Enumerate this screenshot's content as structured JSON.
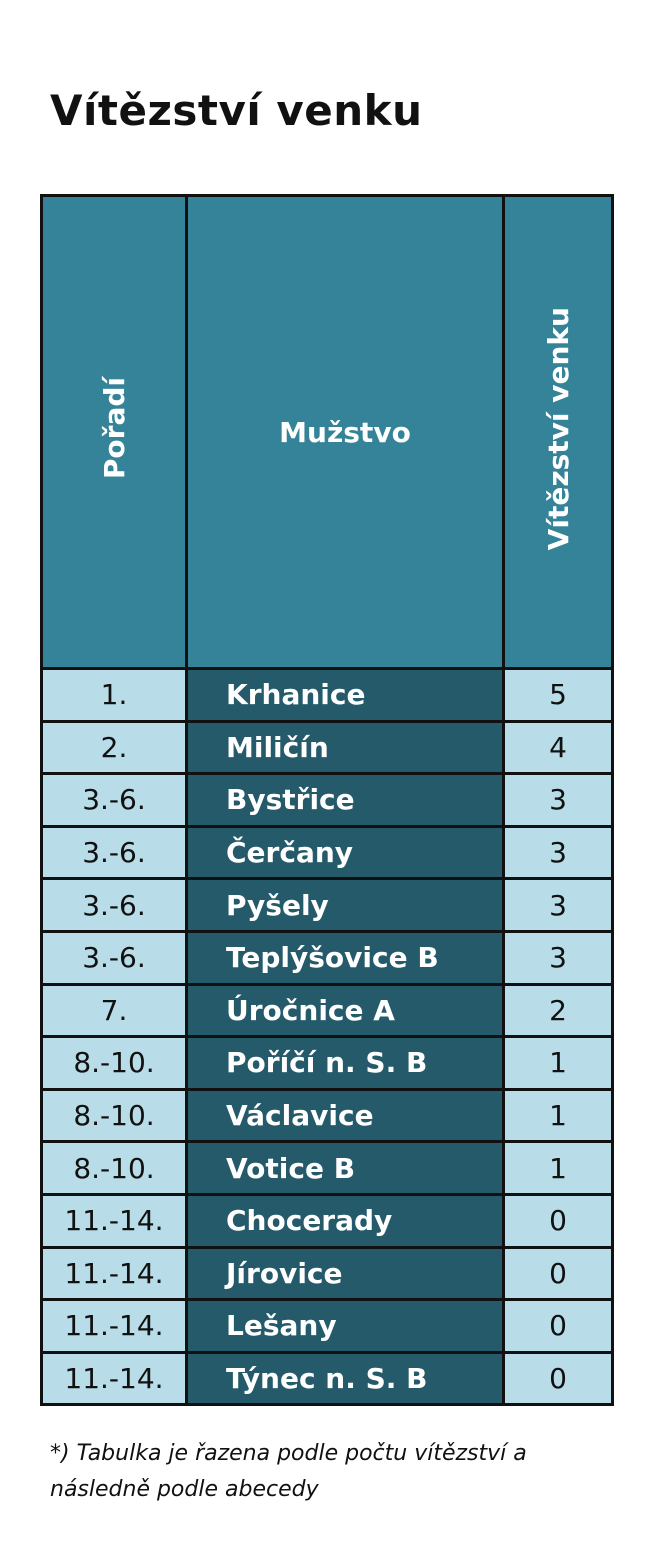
{
  "header": {
    "title": "Vítězství venku"
  },
  "table": {
    "columns": [
      "Pořadí",
      "Mužstvo",
      "Vítězství venku"
    ],
    "rows": [
      [
        "1.",
        "Krhanice",
        5
      ],
      [
        "2.",
        "Miličín",
        4
      ],
      [
        "3.-6.",
        "Bystřice",
        3
      ],
      [
        "3.-6.",
        "Čerčany",
        3
      ],
      [
        "3.-6.",
        "Pyšely",
        3
      ],
      [
        "3.-6.",
        "Teplýšovice B",
        3
      ],
      [
        "7.",
        "Úročnice A",
        2
      ],
      [
        "8.-10.",
        "Poříčí n. S. B",
        1
      ],
      [
        "8.-10.",
        "Václavice",
        1
      ],
      [
        "8.-10.",
        "Votice B",
        1
      ],
      [
        "11.-14.",
        "Chocerady",
        0
      ],
      [
        "11.-14.",
        "Jírovice",
        0
      ],
      [
        "11.-14.",
        "Lešany",
        0
      ],
      [
        "11.-14.",
        "Týnec n. S. B",
        0
      ]
    ]
  },
  "footnote": "*) Tabulka je řazena podle počtu vítězství a následně podle abecedy"
}
